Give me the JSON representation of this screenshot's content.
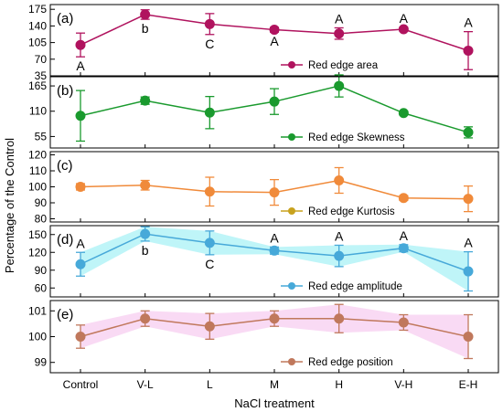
{
  "figure": {
    "ylabel": "Percentage of the Control",
    "xlabel": "NaCl treatment",
    "categories": [
      "Control",
      "V-L",
      "L",
      "M",
      "H",
      "V-H",
      "E-H"
    ]
  },
  "chart_data": [
    {
      "type": "line",
      "panel_label": "(a)",
      "legend": "Red edge area",
      "color": "#b0135e",
      "band": false,
      "ylim": [
        35,
        185
      ],
      "yticks": [
        35,
        70,
        105,
        140,
        175
      ],
      "categories": [
        "Control",
        "V-L",
        "L",
        "M",
        "H",
        "V-H",
        "E-H"
      ],
      "values": [
        100,
        164,
        144,
        132,
        124,
        133,
        88
      ],
      "errors": [
        25,
        10,
        22,
        5,
        12,
        4,
        40
      ],
      "letters": [
        {
          "text": "A",
          "pos": "below"
        },
        {
          "text": "b",
          "pos": "below"
        },
        {
          "text": "C",
          "pos": "below"
        },
        {
          "text": "A",
          "pos": "below"
        },
        {
          "text": "A",
          "pos": "above"
        },
        {
          "text": "A",
          "pos": "above"
        },
        {
          "text": "A",
          "pos": "above"
        }
      ]
    },
    {
      "type": "line",
      "panel_label": "(b)",
      "legend": "Red edge Skewness",
      "color": "#1a9a2e",
      "band": false,
      "ylim": [
        30,
        185
      ],
      "yticks": [
        55,
        110,
        165
      ],
      "categories": [
        "Control",
        "V-L",
        "L",
        "M",
        "H",
        "V-H",
        "E-H"
      ],
      "values": [
        100,
        133,
        107,
        131,
        165,
        106,
        64
      ],
      "errors": [
        55,
        8,
        35,
        28,
        24,
        4,
        12
      ],
      "letters": []
    },
    {
      "type": "line",
      "panel_label": "(c)",
      "legend": "Red edge Kurtosis",
      "color": "#f08a3a",
      "marker_legend": "#c8a21e",
      "band": false,
      "ylim": [
        78,
        122
      ],
      "yticks": [
        80,
        90,
        100,
        110,
        120
      ],
      "categories": [
        "Control",
        "V-L",
        "L",
        "M",
        "H",
        "V-H",
        "E-H"
      ],
      "values": [
        100,
        101,
        97,
        96.5,
        104,
        93,
        92.5
      ],
      "errors": [
        2,
        3,
        9,
        8,
        8,
        1.5,
        8
      ],
      "letters": []
    },
    {
      "type": "line",
      "panel_label": "(d)",
      "legend": "Red edge amplitude",
      "color": "#47a9d9",
      "band": true,
      "band_color": "#a9f1f5",
      "ylim": [
        45,
        165
      ],
      "yticks": [
        60,
        90,
        120,
        150
      ],
      "categories": [
        "Control",
        "V-L",
        "L",
        "M",
        "H",
        "V-H",
        "E-H"
      ],
      "values": [
        100,
        151,
        136,
        123,
        114,
        127,
        88
      ],
      "errors": [
        20,
        12,
        20,
        6,
        18,
        6,
        33
      ],
      "letters": [
        {
          "text": "A",
          "pos": "above"
        },
        {
          "text": "b",
          "pos": "below"
        },
        {
          "text": "C",
          "pos": "below"
        },
        {
          "text": "A",
          "pos": "above"
        },
        {
          "text": "A",
          "pos": "above"
        },
        {
          "text": "A",
          "pos": "above"
        },
        {
          "text": "A",
          "pos": "above"
        }
      ]
    },
    {
      "type": "line",
      "panel_label": "(e)",
      "legend": "Red edge position",
      "color": "#c0785c",
      "band": true,
      "band_color": "#f7cdf0",
      "ylim": [
        98.6,
        101.4
      ],
      "yticks": [
        99,
        100,
        101
      ],
      "categories": [
        "Control",
        "V-L",
        "L",
        "M",
        "H",
        "V-H",
        "E-H"
      ],
      "values": [
        100,
        100.7,
        100.4,
        100.7,
        100.7,
        100.55,
        100
      ],
      "errors": [
        0.45,
        0.3,
        0.5,
        0.3,
        0.55,
        0.3,
        0.85
      ],
      "letters": []
    }
  ]
}
